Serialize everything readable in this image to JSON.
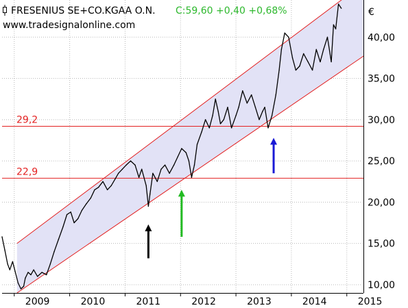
{
  "header": {
    "title": "FRESENIUS SE+CO.KGAA O.N.",
    "quote": "C:59,60 +0,40 +0,68%",
    "source": "www.tradesignalonline.com",
    "quote_color": "#2db82d"
  },
  "chart_data": {
    "type": "line",
    "currency": "€",
    "y_ticks": [
      "10,00",
      "15,00",
      "20,00",
      "25,00",
      "30,00",
      "35,00",
      "40,00"
    ],
    "x_ticks": [
      "2009",
      "2010",
      "2011",
      "2012",
      "2013",
      "2014",
      "2015"
    ],
    "ylim": [
      9,
      44.5
    ],
    "xlim": [
      2008.78,
      2015.3
    ],
    "grid": true,
    "series": [
      {
        "color": "#000000",
        "x": [
          2008.78,
          2008.83,
          2008.88,
          2008.92,
          2008.97,
          2009.02,
          2009.07,
          2009.12,
          2009.17,
          2009.2,
          2009.25,
          2009.3,
          2009.35,
          2009.42,
          2009.5,
          2009.58,
          2009.65,
          2009.72,
          2009.8,
          2009.88,
          2009.95,
          2010.02,
          2010.08,
          2010.15,
          2010.22,
          2010.3,
          2010.38,
          2010.45,
          2010.52,
          2010.6,
          2010.68,
          2010.75,
          2010.82,
          2010.88,
          2010.95,
          2011.02,
          2011.1,
          2011.18,
          2011.25,
          2011.3,
          2011.38,
          2011.42,
          2011.45,
          2011.5,
          2011.58,
          2011.65,
          2011.72,
          2011.8,
          2011.88,
          2011.95,
          2012.02,
          2012.1,
          2012.15,
          2012.2,
          2012.25,
          2012.3,
          2012.38,
          2012.45,
          2012.52,
          2012.58,
          2012.63,
          2012.68,
          2012.72,
          2012.78,
          2012.85,
          2012.92,
          2013.0,
          2013.05,
          2013.12,
          2013.2,
          2013.28,
          2013.35,
          2013.42,
          2013.48,
          2013.52,
          2013.58,
          2013.65,
          2013.72,
          2013.78,
          2013.82,
          2013.88,
          2013.95,
          2014.02,
          2014.08,
          2014.15,
          2014.22,
          2014.3,
          2014.38,
          2014.45,
          2014.52,
          2014.58,
          2014.65,
          2014.72,
          2014.76,
          2014.8,
          2014.85,
          2014.9
        ],
        "y": [
          15.8,
          14.2,
          12.5,
          11.8,
          12.8,
          11.5,
          10.2,
          9.5,
          9.8,
          10.8,
          11.5,
          11.2,
          11.8,
          11.0,
          11.5,
          11.2,
          12.5,
          14.0,
          15.5,
          17.0,
          18.5,
          18.8,
          17.5,
          18.0,
          19.0,
          19.8,
          20.5,
          21.5,
          21.8,
          22.5,
          21.5,
          22.0,
          22.8,
          23.5,
          24.0,
          24.5,
          25.0,
          24.5,
          23.0,
          24.0,
          22.0,
          19.5,
          21.0,
          23.5,
          22.5,
          24.0,
          24.5,
          23.5,
          24.5,
          25.5,
          26.5,
          26.0,
          25.0,
          23.0,
          24.5,
          27.0,
          28.5,
          30.0,
          29.0,
          30.5,
          32.5,
          31.0,
          29.5,
          30.0,
          31.5,
          29.0,
          30.5,
          31.5,
          33.5,
          32.0,
          33.0,
          31.5,
          30.0,
          31.0,
          31.5,
          29.0,
          30.5,
          33.0,
          36.0,
          38.5,
          40.5,
          40.0,
          37.5,
          36.0,
          36.5,
          38.0,
          37.0,
          36.0,
          38.5,
          37.0,
          38.5,
          40.0,
          37.0,
          41.5,
          41.0,
          44.0,
          43.5
        ]
      }
    ],
    "channel": {
      "lower": {
        "x": [
          2009.05,
          2015.3
        ],
        "y": [
          9.0,
          37.7
        ]
      },
      "upper": {
        "x": [
          2009.05,
          2015.3
        ],
        "y": [
          15.0,
          46.5
        ]
      },
      "fill_color": "#e2e2f6",
      "line_color": "#e32020"
    },
    "levels": [
      {
        "value": 29.2,
        "label": "29,2",
        "color": "#e32020"
      },
      {
        "value": 22.9,
        "label": "22,9",
        "color": "#e32020"
      }
    ],
    "annotations": [
      {
        "type": "arrow",
        "x": 2011.42,
        "y_from": 13.2,
        "y_to": 17.3,
        "color": "#000000"
      },
      {
        "type": "arrow",
        "x": 2012.02,
        "y_from": 15.8,
        "y_to": 21.5,
        "color": "#22bb22"
      },
      {
        "type": "arrow",
        "x": 2013.68,
        "y_from": 23.5,
        "y_to": 27.8,
        "color": "#1a1ad6"
      }
    ]
  }
}
